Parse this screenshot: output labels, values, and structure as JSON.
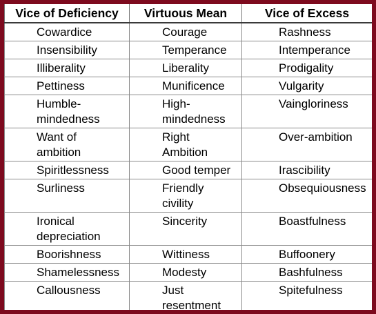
{
  "headers": [
    "Vice of Deficiency",
    "Virtuous Mean",
    "Vice of Excess"
  ],
  "rows": [
    {
      "deficiency": "Cowardice",
      "mean": "Courage",
      "excess": "Rashness"
    },
    {
      "deficiency": "Insensibility",
      "mean": "Temperance",
      "excess": "Intemperance"
    },
    {
      "deficiency": "Illiberality",
      "mean": "Liberality",
      "excess": "Prodigality"
    },
    {
      "deficiency": "Pettiness",
      "mean": "Munificence",
      "excess": "Vulgarity"
    },
    {
      "deficiency": "Humble-\nmindedness",
      "mean": "High-\nmindedness",
      "excess": "Vaingloriness"
    },
    {
      "deficiency": "Want of\nambition",
      "mean": "Right\nAmbition",
      "excess": "Over-ambition"
    },
    {
      "deficiency": "Spiritlessness",
      "mean": "Good temper",
      "excess": "Irascibility"
    },
    {
      "deficiency": "Surliness",
      "mean": "Friendly\ncivility",
      "excess": "Obsequiousness"
    },
    {
      "deficiency": "Ironical\ndepreciation",
      "mean": "Sincerity",
      "excess": "Boastfulness"
    },
    {
      "deficiency": "Boorishness",
      "mean": "Wittiness",
      "excess": "Buffoonery"
    },
    {
      "deficiency": "Shamelessness",
      "mean": "Modesty",
      "excess": "Bashfulness"
    },
    {
      "deficiency": "Callousness",
      "mean": "Just\nresentment",
      "excess": "Spitefulness"
    }
  ],
  "colors": {
    "frame": "#7d0a1e",
    "background": "#ffffff",
    "text": "#000000"
  }
}
